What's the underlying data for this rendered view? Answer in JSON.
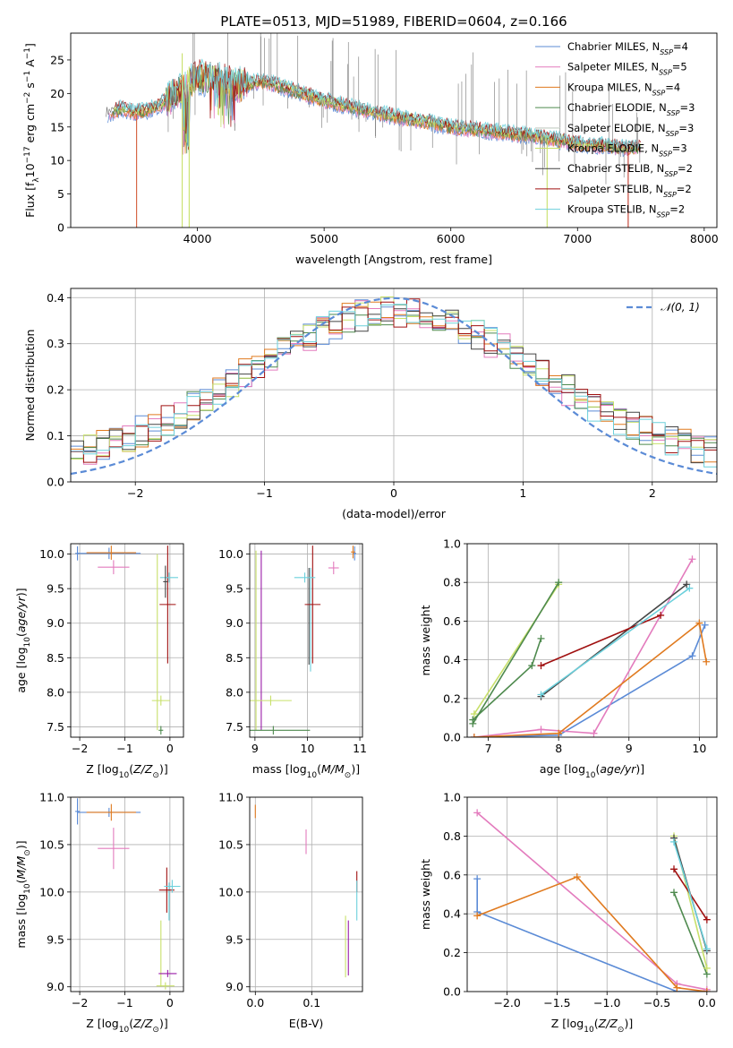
{
  "figure": {
    "title": "PLATE=0513, MJD=51989, FIBERID=0604, z=0.166",
    "model_colors": [
      "#5b8bd6",
      "#e37bbd",
      "#e07a1f",
      "#4e8a4e",
      "#dcdcdc",
      "#c8e06a",
      "#444444",
      "#a01010",
      "#6cd0dc"
    ],
    "extra_colors": {
      "magenta": "#9a1ca8",
      "olive": "#98a85a",
      "gray": "#888888",
      "gauss": "#5b8bd6"
    }
  },
  "chart_data": [
    {
      "id": "spectrum",
      "type": "line",
      "xlabel": "wavelength [Angstrom, rest frame]",
      "ylabel": "Flux [f",
      "ylabel_parts": [
        "Flux [f",
        "λ",
        "10",
        "−17",
        " erg cm",
        "−2",
        " s",
        "−1",
        " A",
        "−1",
        "]"
      ],
      "xlim": [
        3000,
        8100
      ],
      "ylim": [
        0,
        29
      ],
      "xticks": [
        4000,
        5000,
        6000,
        7000,
        8000
      ],
      "yticks": [
        0,
        5,
        10,
        15,
        20,
        25
      ],
      "grid": false,
      "legend": {
        "position": "right",
        "entries": [
          {
            "label": "Chabrier MILES, N",
            "sub": "SSP",
            "val": "=4"
          },
          {
            "label": "Salpeter MILES, N",
            "sub": "SSP",
            "val": "=5"
          },
          {
            "label": "Kroupa MILES, N",
            "sub": "SSP",
            "val": "=4"
          },
          {
            "label": "Chabrier ELODIE, N",
            "sub": "SSP",
            "val": "=3"
          },
          {
            "label": "Salpeter ELODIE, N",
            "sub": "SSP",
            "val": "=3"
          },
          {
            "label": "Kroupa ELODIE, N",
            "sub": "SSP",
            "val": "=3"
          },
          {
            "label": "Chabrier STELIB, N",
            "sub": "SSP",
            "val": "=2"
          },
          {
            "label": "Salpeter STELIB, N",
            "sub": "SSP",
            "val": "=2"
          },
          {
            "label": "Kroupa STELIB, N",
            "sub": "SSP",
            "val": "=2"
          }
        ]
      },
      "continuum": [
        [
          3300,
          17
        ],
        [
          3400,
          17.8
        ],
        [
          3500,
          17.2
        ],
        [
          3600,
          17.5
        ],
        [
          3700,
          18.2
        ],
        [
          3800,
          19.5
        ],
        [
          3900,
          21
        ],
        [
          4000,
          22.5
        ],
        [
          4100,
          22.2
        ],
        [
          4200,
          22.0
        ],
        [
          4300,
          21.2
        ],
        [
          4400,
          21.5
        ],
        [
          4500,
          21.8
        ],
        [
          4600,
          21.4
        ],
        [
          4700,
          20.8
        ],
        [
          4800,
          20.2
        ],
        [
          4900,
          19.6
        ],
        [
          5000,
          19.0
        ],
        [
          5200,
          18.0
        ],
        [
          5400,
          17.2
        ],
        [
          5600,
          16.4
        ],
        [
          5800,
          15.8
        ],
        [
          6000,
          15.0
        ],
        [
          6200,
          14.6
        ],
        [
          6400,
          14.2
        ],
        [
          6600,
          13.8
        ],
        [
          6800,
          13.2
        ],
        [
          7000,
          12.5
        ],
        [
          7200,
          12.2
        ],
        [
          7400,
          11.9
        ],
        [
          7500,
          11.8
        ]
      ],
      "dropouts": [
        [
          3520,
          0,
          17
        ],
        [
          3880,
          0,
          26
        ],
        [
          3935,
          0,
          24
        ],
        [
          6760,
          0,
          13
        ],
        [
          7400,
          0,
          12
        ]
      ]
    },
    {
      "id": "residuals",
      "type": "line",
      "xlabel": "(data-model)/error",
      "ylabel": "Normed distribution",
      "xlim": [
        -2.5,
        2.5
      ],
      "ylim": [
        0,
        0.42
      ],
      "xticks": [
        -2,
        -1,
        0,
        1,
        2
      ],
      "yticks": [
        0.0,
        0.1,
        0.2,
        0.3,
        0.4
      ],
      "xtick_labels": [
        "−2",
        "−1",
        "0",
        "1",
        "2"
      ],
      "ytick_labels": [
        "0.0",
        "0.1",
        "0.2",
        "0.3",
        "0.4"
      ],
      "grid": true,
      "legend": {
        "position": "top-right",
        "label": "𝒩(0, 1)"
      },
      "gaussian": {
        "mu": 0,
        "sigma": 1
      },
      "bin_width": 0.1
    },
    {
      "id": "age_vs_Z",
      "type": "scatter",
      "xlabel": "Z [log",
      "ylabel": "age  [log",
      "xlim": [
        -2.2,
        0.3
      ],
      "ylim": [
        7.35,
        10.15
      ],
      "xticks": [
        -2,
        -1,
        0
      ],
      "xtick_labels": [
        "−2",
        "−1",
        "0"
      ],
      "yticks": [
        7.5,
        8.0,
        8.5,
        9.0,
        9.5,
        10.0
      ],
      "ytick_labels": [
        "7.5",
        "8.0",
        "8.5",
        "9.0",
        "9.5",
        "10.0"
      ],
      "grid": true,
      "points": [
        {
          "c": 0,
          "x": -1.35,
          "xe": 0.7,
          "y": 10.01,
          "ye": 0.03
        },
        {
          "c": 1,
          "x": -1.25,
          "xe": 0.35,
          "y": 9.81,
          "ye": 0.05
        },
        {
          "c": 2,
          "x": -1.3,
          "xe": 0.55,
          "y": 10.02,
          "ye": 0.05
        },
        {
          "c": 0,
          "x": -2.05,
          "xe": 0.05,
          "y": 10.01,
          "ye": 0.05
        },
        {
          "c": 3,
          "x": -0.2,
          "xe": 0.05,
          "y": 7.45,
          "ye": 0.01
        },
        {
          "c": 7,
          "x": -0.05,
          "xe": 0.18,
          "y": 9.27,
          "ye": 0.8
        },
        {
          "c": 8,
          "x": -0.02,
          "xe": 0.2,
          "y": 9.66,
          "ye": 0.02
        },
        {
          "c": 6,
          "x": -0.1,
          "xe": 0.05,
          "y": 9.6,
          "ye": 0.18
        },
        {
          "c": 5,
          "x": -0.2,
          "xe": 0.2,
          "y": 7.88,
          "ye": 0.02
        }
      ],
      "vlines": [
        {
          "c": 5,
          "x": -0.28,
          "y0": 7.45,
          "y1": 10.0
        }
      ]
    },
    {
      "id": "age_vs_mass",
      "type": "scatter",
      "xlabel": "mass [log",
      "xlim": [
        8.9,
        11.05
      ],
      "ylim": [
        7.35,
        10.15
      ],
      "xticks": [
        9,
        10,
        11
      ],
      "xtick_labels": [
        "9",
        "10",
        "11"
      ],
      "yticks": [
        7.5,
        8.0,
        8.5,
        9.0,
        9.5,
        10.0
      ],
      "ytick_labels": [
        "7.5",
        "8.0",
        "8.5",
        "9.0",
        "9.5",
        "10.0"
      ],
      "grid": true,
      "points": [
        {
          "c": 1,
          "x": 10.5,
          "xe": 0.1,
          "y": 9.8,
          "ye": 0.04
        },
        {
          "c": 0,
          "x": 10.9,
          "xe": 0.03,
          "y": 10.01,
          "ye": 0.05
        },
        {
          "c": 2,
          "x": 10.87,
          "xe": 0.04,
          "y": 10.03,
          "ye": 0.04
        },
        {
          "c": 7,
          "x": 10.1,
          "xe": 0.15,
          "y": 9.27,
          "ye": 0.8
        },
        {
          "c": 8,
          "x": 9.95,
          "xe": 0.2,
          "y": 9.66,
          "ye": 0.02
        },
        {
          "c": 3,
          "x": 9.35,
          "xe": 0.7,
          "y": 7.45,
          "ye": 0.01
        },
        {
          "c": 5,
          "x": 9.3,
          "xe": 0.4,
          "y": 7.88,
          "ye": 0.02
        }
      ],
      "vlines": [
        {
          "c": 5,
          "x": 9.02,
          "y0": 7.45,
          "y1": 10.05
        },
        {
          "c": 9,
          "x": 9.12,
          "y0": 7.45,
          "y1": 10.05
        },
        {
          "c": 8,
          "x": 10.06,
          "y0": 8.3,
          "y1": 9.8
        },
        {
          "c": 6,
          "x": 10.03,
          "y0": 8.4,
          "y1": 9.8
        }
      ]
    },
    {
      "id": "weight_vs_age",
      "type": "line",
      "xlabel": "age  [log",
      "ylabel": "mass weight",
      "xlim": [
        6.7,
        10.25
      ],
      "ylim": [
        0,
        1.0
      ],
      "xticks": [
        7,
        8,
        9,
        10
      ],
      "xtick_labels": [
        "7",
        "8",
        "9",
        "10"
      ],
      "yticks": [
        0.0,
        0.2,
        0.4,
        0.6,
        0.8,
        1.0
      ],
      "ytick_labels": [
        "0.0",
        "0.2",
        "0.4",
        "0.6",
        "0.8",
        "1.0"
      ],
      "grid": true,
      "series": [
        {
          "c": 0,
          "pts": [
            [
              6.8,
              0.0
            ],
            [
              8.0,
              0.01
            ],
            [
              9.9,
              0.42
            ],
            [
              10.08,
              0.58
            ]
          ]
        },
        {
          "c": 1,
          "pts": [
            [
              6.8,
              0.0
            ],
            [
              7.75,
              0.04
            ],
            [
              8.5,
              0.02
            ],
            [
              9.9,
              0.92
            ]
          ]
        },
        {
          "c": 2,
          "pts": [
            [
              6.8,
              0.0
            ],
            [
              8.0,
              0.02
            ],
            [
              10.0,
              0.59
            ],
            [
              10.1,
              0.39
            ]
          ]
        },
        {
          "c": 3,
          "pts": [
            [
              6.78,
              0.09
            ],
            [
              7.62,
              0.37
            ],
            [
              7.75,
              0.51
            ]
          ]
        },
        {
          "c": 5,
          "pts": [
            [
              6.8,
              0.12
            ],
            [
              8.0,
              0.79
            ]
          ]
        },
        {
          "c": 6,
          "pts": [
            [
              7.75,
              0.21
            ],
            [
              9.82,
              0.79
            ]
          ]
        },
        {
          "c": 7,
          "pts": [
            [
              7.75,
              0.37
            ],
            [
              9.45,
              0.63
            ]
          ]
        },
        {
          "c": 8,
          "pts": [
            [
              7.75,
              0.22
            ],
            [
              9.86,
              0.77
            ]
          ]
        },
        {
          "c": 3,
          "pts": [
            [
              6.78,
              0.07
            ],
            [
              8.0,
              0.8
            ]
          ]
        }
      ]
    },
    {
      "id": "mass_vs_Z",
      "type": "scatter",
      "xlabel": "Z [log",
      "ylabel": "mass [log",
      "xlim": [
        -2.2,
        0.3
      ],
      "ylim": [
        8.95,
        11.0
      ],
      "xticks": [
        -2,
        -1,
        0
      ],
      "xtick_labels": [
        "−2",
        "−1",
        "0"
      ],
      "yticks": [
        9.0,
        9.5,
        10.0,
        10.5,
        11.0
      ],
      "ytick_labels": [
        "9.0",
        "9.5",
        "10.0",
        "10.5",
        "11.0"
      ],
      "grid": true,
      "points": [
        {
          "c": 0,
          "x": -1.35,
          "xe": 0.7,
          "y": 10.84,
          "ye": 0.01
        },
        {
          "c": 2,
          "x": -1.3,
          "xe": 0.55,
          "y": 10.84,
          "ye": 0.05
        },
        {
          "c": 0,
          "x": -2.05,
          "xe": 0.05,
          "y": 10.85,
          "ye": 0.1
        },
        {
          "c": 1,
          "x": -1.25,
          "xe": 0.35,
          "y": 10.46,
          "ye": 0.18
        },
        {
          "c": 7,
          "x": -0.07,
          "xe": 0.17,
          "y": 10.02,
          "ye": 0.2
        },
        {
          "c": 8,
          "x": 0.05,
          "xe": 0.18,
          "y": 10.06,
          "ye": 0.03
        },
        {
          "c": 9,
          "x": -0.05,
          "xe": 0.2,
          "y": 9.14,
          "ye": 0.0
        },
        {
          "c": 5,
          "x": -0.1,
          "xe": 0.2,
          "y": 9.01,
          "ye": 0.0
        }
      ],
      "vlines": [
        {
          "c": 5,
          "x": -0.2,
          "y0": 9.0,
          "y1": 9.7
        },
        {
          "c": 8,
          "x": -0.02,
          "y0": 9.7,
          "y1": 10.1
        }
      ]
    },
    {
      "id": "mass_vs_ebv",
      "type": "scatter",
      "xlabel": "E(B-V)",
      "xlim": [
        -0.01,
        0.19
      ],
      "ylim": [
        8.95,
        11.0
      ],
      "xticks": [
        0.0,
        0.1
      ],
      "xtick_labels": [
        "0.0",
        "0.1"
      ],
      "yticks": [
        9.0,
        9.5,
        10.0,
        10.5,
        11.0
      ],
      "ytick_labels": [
        "9.0",
        "9.5",
        "10.0",
        "10.5",
        "11.0"
      ],
      "grid": true,
      "vlines": [
        {
          "c": 2,
          "x": 0.0,
          "y0": 10.78,
          "y1": 10.92
        },
        {
          "c": 1,
          "x": 0.09,
          "y0": 10.4,
          "y1": 10.66
        },
        {
          "c": 5,
          "x": 0.16,
          "y0": 9.1,
          "y1": 9.75
        },
        {
          "c": 9,
          "x": 0.165,
          "y0": 9.12,
          "y1": 9.7
        },
        {
          "c": 7,
          "x": 0.18,
          "y0": 10.0,
          "y1": 10.22
        },
        {
          "c": 8,
          "x": 0.18,
          "y0": 9.7,
          "y1": 10.12
        }
      ]
    },
    {
      "id": "weight_vs_Z",
      "type": "line",
      "xlabel": "Z [log",
      "ylabel": "mass weight",
      "xlim": [
        -2.4,
        0.1
      ],
      "ylim": [
        0,
        1.0
      ],
      "xticks": [
        -2.0,
        -1.5,
        -1.0,
        -0.5,
        0.0
      ],
      "xtick_labels": [
        "−2.0",
        "−1.5",
        "−1.0",
        "−0.5",
        "0.0"
      ],
      "yticks": [
        0.0,
        0.2,
        0.4,
        0.6,
        0.8,
        1.0
      ],
      "ytick_labels": [
        "0.0",
        "0.2",
        "0.4",
        "0.6",
        "0.8",
        "1.0"
      ],
      "grid": true,
      "series": [
        {
          "c": 0,
          "pts": [
            [
              -2.3,
              0.58
            ],
            [
              -2.3,
              0.41
            ],
            [
              -0.3,
              0.0
            ],
            [
              0.0,
              0.0
            ]
          ]
        },
        {
          "c": 1,
          "pts": [
            [
              -2.3,
              0.92
            ],
            [
              -0.3,
              0.04
            ],
            [
              0.0,
              0.01
            ]
          ]
        },
        {
          "c": 2,
          "pts": [
            [
              -2.3,
              0.39
            ],
            [
              -1.3,
              0.59
            ],
            [
              -0.3,
              0.02
            ],
            [
              0.0,
              0.0
            ]
          ]
        },
        {
          "c": 3,
          "pts": [
            [
              -0.33,
              0.51
            ],
            [
              0.0,
              0.09
            ]
          ]
        },
        {
          "c": 5,
          "pts": [
            [
              -0.33,
              0.8
            ],
            [
              0.0,
              0.12
            ]
          ]
        },
        {
          "c": 6,
          "pts": [
            [
              -0.33,
              0.79
            ],
            [
              0.0,
              0.21
            ]
          ]
        },
        {
          "c": 7,
          "pts": [
            [
              -0.33,
              0.63
            ],
            [
              0.0,
              0.37
            ]
          ]
        },
        {
          "c": 8,
          "pts": [
            [
              -0.33,
              0.77
            ],
            [
              0.0,
              0.22
            ]
          ]
        }
      ]
    }
  ]
}
